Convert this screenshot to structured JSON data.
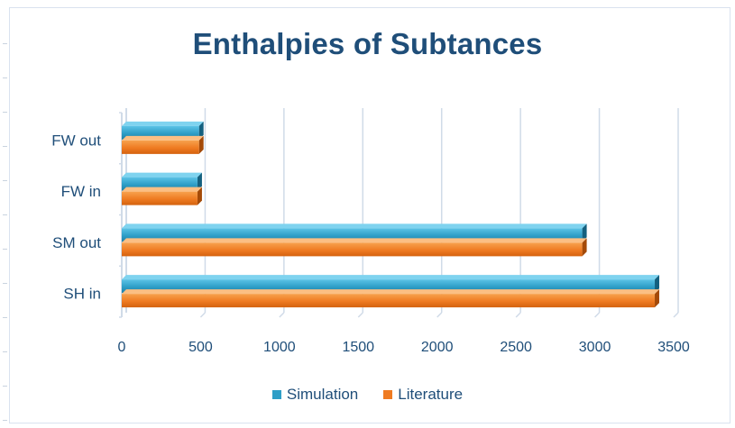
{
  "chart_data": {
    "type": "bar",
    "orientation": "horizontal",
    "title": "Enthalpies of Subtances",
    "categories": [
      "SH in",
      "SM out",
      "FW in",
      "FW out"
    ],
    "series": [
      {
        "name": "Simulation",
        "color": "#2e9ec7",
        "values": [
          3380,
          2920,
          480,
          490
        ]
      },
      {
        "name": "Literature",
        "color": "#ef7b22",
        "values": [
          3380,
          2920,
          480,
          490
        ]
      }
    ],
    "xticks": [
      "0",
      "500",
      "1000",
      "1500",
      "2000",
      "2500",
      "3000",
      "3500"
    ],
    "xlim": [
      0,
      3500
    ],
    "grid": true,
    "legend_position": "bottom"
  }
}
